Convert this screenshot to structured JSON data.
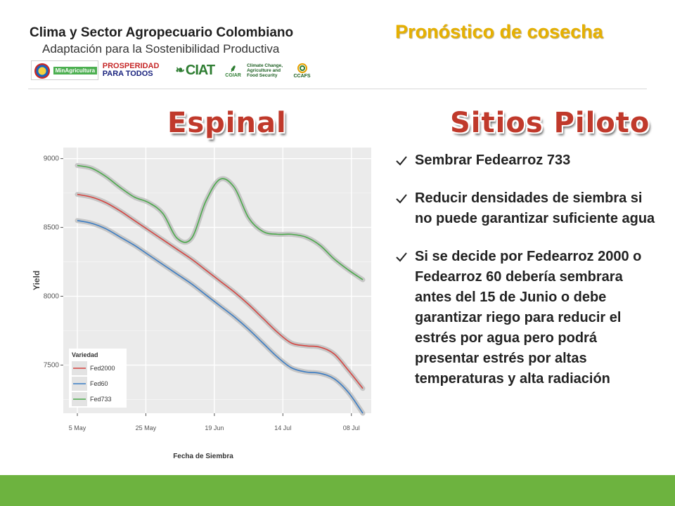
{
  "header": {
    "title": "Clima y Sector Agropecuario Colombiano",
    "subtitle": "Adaptación para la Sostenibilidad Productiva",
    "logos": {
      "minagri": "MinAgricultura",
      "prosperidad_line1": "PROSPERIDAD",
      "prosperidad_line2": "PARA TODOS",
      "ciat": "CIAT",
      "cgiar": "CGIAR",
      "ccafs_text": "Climate Change, Agriculture and Food Security",
      "ccafs": "CCAFS"
    }
  },
  "page_title": "Pronóstico de cosecha",
  "left_heading": "Espinal",
  "right_heading": "Sitios Piloto",
  "bullets": [
    "Sembrar Fedearroz 733",
    "Reducir densidades de siembra si no puede garantizar suficiente agua",
    "Si se decide por Fedearroz 2000  o Fedearroz 60 debería sembrara antes del 15 de Junio o debe garantizar riego para reducir el estrés por agua pero podrá presentar estrés por altas temperaturas y alta radiación"
  ],
  "colors": {
    "title_gold": "#e6b000",
    "heading_red": "#c0392b",
    "footer_green": "#6db33f",
    "fed2000": "#d64541",
    "fed60": "#3b7dc4",
    "fed733": "#4caa4c"
  },
  "chart_data": {
    "type": "line",
    "xlabel": "Fecha de Siembra",
    "ylabel": "Yield",
    "x_ticks": [
      "5 May",
      "25 May",
      "19 Jun",
      "14 Jul",
      "08 Jul"
    ],
    "y_ticks": [
      7500,
      8000,
      8500,
      9000
    ],
    "ylim": [
      7150,
      9080
    ],
    "legend_title": "Variedad",
    "legend_position": "bottom-left",
    "grid": true,
    "x": [
      0,
      0.05,
      0.1,
      0.15,
      0.2,
      0.25,
      0.3,
      0.35,
      0.4,
      0.45,
      0.5,
      0.55,
      0.6,
      0.65,
      0.7,
      0.75,
      0.8,
      0.85,
      0.9,
      0.95,
      1.0
    ],
    "series": [
      {
        "name": "Fed2000",
        "values": [
          8740,
          8720,
          8680,
          8620,
          8550,
          8480,
          8410,
          8340,
          8270,
          8190,
          8110,
          8030,
          7940,
          7840,
          7740,
          7660,
          7640,
          7630,
          7580,
          7460,
          7330
        ]
      },
      {
        "name": "Fed60",
        "values": [
          8550,
          8530,
          8490,
          8430,
          8370,
          8300,
          8230,
          8160,
          8090,
          8010,
          7930,
          7850,
          7760,
          7660,
          7560,
          7480,
          7450,
          7440,
          7400,
          7300,
          7150
        ]
      },
      {
        "name": "Fed733",
        "values": [
          8950,
          8930,
          8870,
          8790,
          8720,
          8680,
          8600,
          8420,
          8420,
          8690,
          8850,
          8790,
          8570,
          8470,
          8450,
          8450,
          8430,
          8370,
          8270,
          8190,
          8120
        ]
      }
    ]
  }
}
